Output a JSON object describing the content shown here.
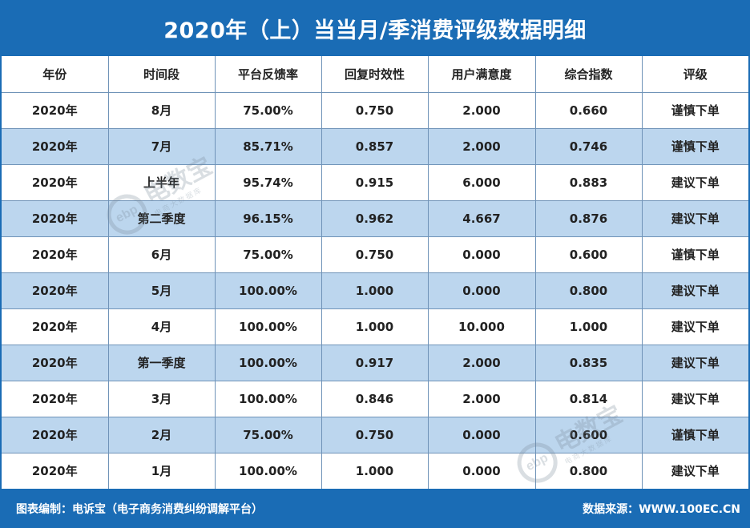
{
  "title": "2020年（上）当当月/季消费评级数据明细",
  "headers": [
    "年份",
    "时间段",
    "平台反馈率",
    "回复时效性",
    "用户满意度",
    "综合指数",
    "评级"
  ],
  "rows": [
    [
      "2020年",
      "8月",
      "75.00%",
      "0.750",
      "2.000",
      "0.660",
      "谨慎下单"
    ],
    [
      "2020年",
      "7月",
      "85.71%",
      "0.857",
      "2.000",
      "0.746",
      "谨慎下单"
    ],
    [
      "2020年",
      "上半年",
      "95.74%",
      "0.915",
      "6.000",
      "0.883",
      "建议下单"
    ],
    [
      "2020年",
      "第二季度",
      "96.15%",
      "0.962",
      "4.667",
      "0.876",
      "建议下单"
    ],
    [
      "2020年",
      "6月",
      "75.00%",
      "0.750",
      "0.000",
      "0.600",
      "谨慎下单"
    ],
    [
      "2020年",
      "5月",
      "100.00%",
      "1.000",
      "0.000",
      "0.800",
      "建议下单"
    ],
    [
      "2020年",
      "4月",
      "100.00%",
      "1.000",
      "10.000",
      "1.000",
      "建议下单"
    ],
    [
      "2020年",
      "第一季度",
      "100.00%",
      "0.917",
      "2.000",
      "0.835",
      "建议下单"
    ],
    [
      "2020年",
      "3月",
      "100.00%",
      "0.846",
      "2.000",
      "0.814",
      "建议下单"
    ],
    [
      "2020年",
      "2月",
      "75.00%",
      "0.750",
      "0.000",
      "0.600",
      "谨慎下单"
    ],
    [
      "2020年",
      "1月",
      "100.00%",
      "1.000",
      "0.000",
      "0.800",
      "建议下单"
    ]
  ],
  "watermark": {
    "logo_text": "ebp",
    "main_text": "电数宝",
    "sub_text": "电商大数据库"
  },
  "footer": {
    "left": "图表编制：电诉宝（电子商务消费纠纷调解平台）",
    "right": "数据来源：WWW.100EC.CN"
  },
  "colors": {
    "brand_blue": "#1a6cb5",
    "row_alt": "#bcd6ee",
    "grid_line": "#6f93b8",
    "text": "#222222"
  }
}
